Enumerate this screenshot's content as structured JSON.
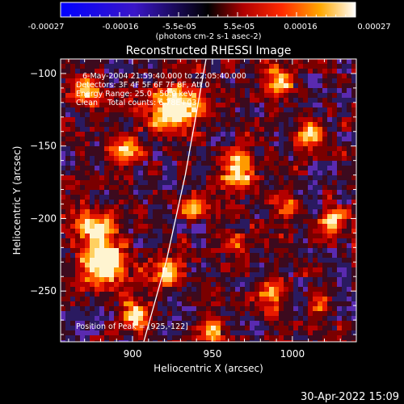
{
  "chart_data": {
    "type": "heatmap",
    "title": "Reconstructed RHESSI Image",
    "xlabel": "Heliocentric X (arcsec)",
    "ylabel": "Heliocentric Y (arcsec)",
    "xlim": [
      855,
      1040
    ],
    "ylim": [
      -285,
      -90
    ],
    "x_ticks": [
      900,
      950,
      1000
    ],
    "y_ticks": [
      -100,
      -150,
      -200,
      -250
    ],
    "colorbar": {
      "ticks": [
        "-0.00027",
        "-0.00016",
        "-5.5e-05",
        "5.5e-05",
        "0.00016",
        "0.00027"
      ],
      "range": [
        -0.00027,
        0.00027
      ],
      "label": "(photons cm-2 s-1 asec-2)"
    },
    "annotations": {
      "time_range": "6-May-2004 21:59:40.000 to 22:05:40.000",
      "detectors": "Detectors: 3F 4F 5F 6F 7F 8F, Att 0",
      "energy": "Energy Range: 25.0 - 50.0 keV",
      "method": "Clean    Total counts: 6.78E+03",
      "peak": "Position of Peak = [925,-122]"
    },
    "limb_line": [
      [
        907,
        -285
      ],
      [
        921,
        -230
      ],
      [
        933,
        -170
      ],
      [
        946,
        -90
      ]
    ],
    "peak": {
      "x": 925,
      "y": -122
    },
    "grid": false
  },
  "footer": {
    "timestamp": "30-Apr-2022 15:09"
  }
}
